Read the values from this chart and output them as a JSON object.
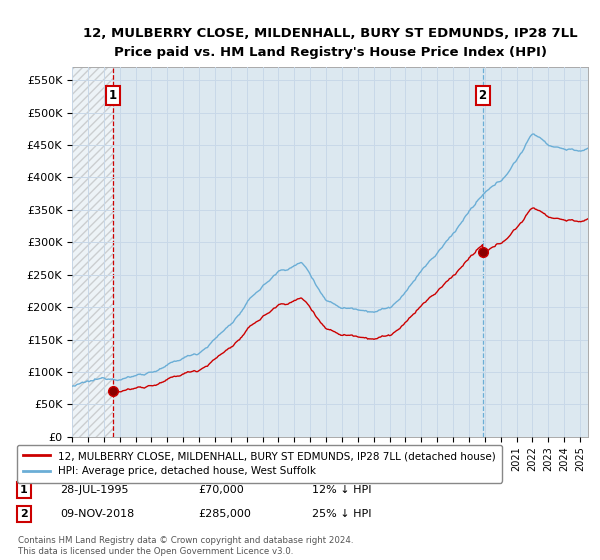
{
  "title": "12, MULBERRY CLOSE, MILDENHALL, BURY ST EDMUNDS, IP28 7LL",
  "subtitle": "Price paid vs. HM Land Registry's House Price Index (HPI)",
  "ylim": [
    0,
    570000
  ],
  "yticks": [
    0,
    50000,
    100000,
    150000,
    200000,
    250000,
    300000,
    350000,
    400000,
    450000,
    500000,
    550000
  ],
  "ytick_labels": [
    "£0",
    "£50K",
    "£100K",
    "£150K",
    "£200K",
    "£250K",
    "£300K",
    "£350K",
    "£400K",
    "£450K",
    "£500K",
    "£550K"
  ],
  "hpi_color": "#6baed6",
  "price_color": "#cc0000",
  "sale1_x": 1995.57,
  "sale1_y": 70000,
  "sale2_x": 2018.86,
  "sale2_y": 285000,
  "legend_line1": "12, MULBERRY CLOSE, MILDENHALL, BURY ST EDMUNDS, IP28 7LL (detached house)",
  "legend_line2": "HPI: Average price, detached house, West Suffolk",
  "annotation1_date": "28-JUL-1995",
  "annotation1_price": "£70,000",
  "annotation1_hpi": "12% ↓ HPI",
  "annotation2_date": "09-NOV-2018",
  "annotation2_price": "£285,000",
  "annotation2_hpi": "25% ↓ HPI",
  "footnote": "Contains HM Land Registry data © Crown copyright and database right 2024.\nThis data is licensed under the Open Government Licence v3.0.",
  "bg_color": "#ffffff",
  "grid_color": "#c8d8e8",
  "plot_bg_color": "#dce8f0",
  "xlim_start": 1993.0,
  "xlim_end": 2025.5
}
